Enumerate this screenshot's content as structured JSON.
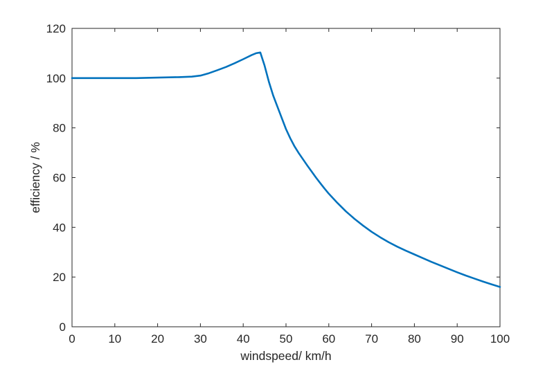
{
  "figure": {
    "background": "#ffffff"
  },
  "chart_data": {
    "type": "line",
    "title": "",
    "xlabel": "windspeed/ km/h",
    "ylabel": "efficiency / %",
    "xlim": [
      0,
      100
    ],
    "ylim": [
      0,
      120
    ],
    "xticks": [
      0,
      10,
      20,
      30,
      40,
      50,
      60,
      70,
      80,
      90,
      100
    ],
    "yticks": [
      0,
      20,
      40,
      60,
      80,
      100,
      120
    ],
    "grid": false,
    "box": true,
    "legend_position": "none",
    "axis_color": "#262626",
    "series": [
      {
        "name": "efficiency",
        "color": "#0072bd",
        "line_width": 2.6,
        "x": [
          0,
          5,
          10,
          15,
          20,
          25,
          28,
          30,
          32,
          34,
          36,
          38,
          40,
          42,
          43,
          44,
          45,
          46,
          47,
          48,
          49,
          50,
          51,
          52,
          53,
          54,
          55,
          56,
          57,
          58,
          59,
          60,
          62,
          64,
          66,
          68,
          70,
          72,
          74,
          76,
          78,
          80,
          82,
          84,
          86,
          88,
          90,
          92,
          94,
          96,
          98,
          100
        ],
        "y": [
          100,
          100,
          100,
          100,
          100.2,
          100.4,
          100.6,
          101,
          102,
          103.2,
          104.5,
          106,
          107.6,
          109.3,
          110,
          110.3,
          105,
          98.5,
          93,
          88.5,
          84,
          79.5,
          75.8,
          72.5,
          69.8,
          67.3,
          64.8,
          62.4,
          60,
          57.8,
          55.6,
          53.5,
          49.8,
          46.4,
          43.4,
          40.7,
          38.2,
          36,
          34,
          32.2,
          30.6,
          29.1,
          27.6,
          26.1,
          24.7,
          23.3,
          21.9,
          20.6,
          19.4,
          18.2,
          17.1,
          16
        ]
      }
    ]
  }
}
